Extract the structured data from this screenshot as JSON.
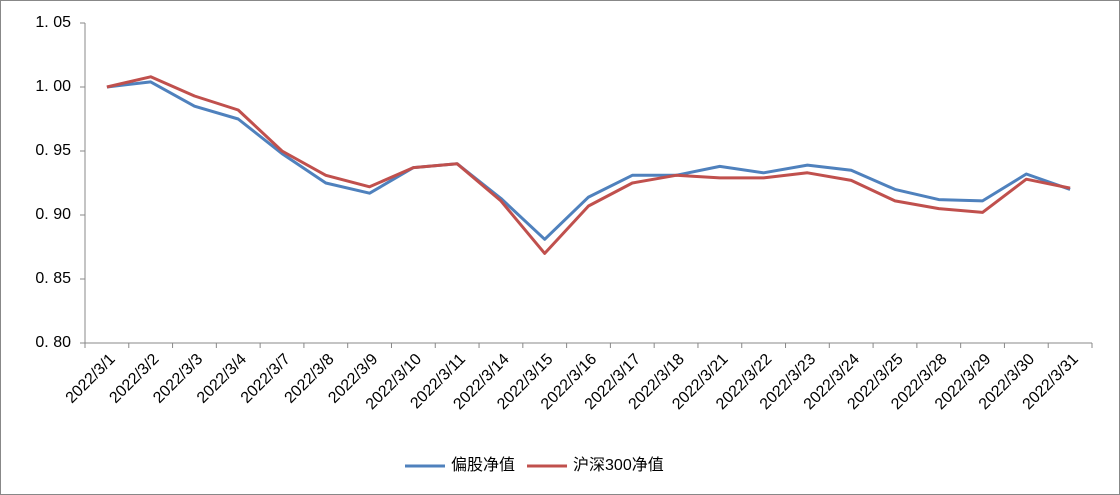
{
  "chart_data": {
    "type": "line",
    "categories": [
      "2022/3/1",
      "2022/3/2",
      "2022/3/3",
      "2022/3/4",
      "2022/3/7",
      "2022/3/8",
      "2022/3/9",
      "2022/3/10",
      "2022/3/11",
      "2022/3/14",
      "2022/3/15",
      "2022/3/16",
      "2022/3/17",
      "2022/3/18",
      "2022/3/21",
      "2022/3/22",
      "2022/3/23",
      "2022/3/24",
      "2022/3/25",
      "2022/3/28",
      "2022/3/29",
      "2022/3/30",
      "2022/3/31"
    ],
    "series": [
      {
        "name": "偏股净值",
        "color": "#4f81bd",
        "values": [
          1.0,
          1.004,
          0.985,
          0.975,
          0.948,
          0.925,
          0.917,
          0.937,
          0.94,
          0.913,
          0.881,
          0.914,
          0.931,
          0.931,
          0.938,
          0.933,
          0.939,
          0.935,
          0.92,
          0.912,
          0.911,
          0.932,
          0.92
        ]
      },
      {
        "name": "沪深300净值",
        "color": "#c0504d",
        "values": [
          1.0,
          1.008,
          0.993,
          0.982,
          0.95,
          0.931,
          0.922,
          0.937,
          0.94,
          0.911,
          0.87,
          0.907,
          0.925,
          0.931,
          0.929,
          0.929,
          0.933,
          0.927,
          0.911,
          0.905,
          0.902,
          0.928,
          0.921
        ]
      }
    ],
    "ylim": [
      0.8,
      1.05
    ],
    "yticks": [
      {
        "value": 0.8,
        "label": "0. 80"
      },
      {
        "value": 0.85,
        "label": "0. 85"
      },
      {
        "value": 0.9,
        "label": "0. 90"
      },
      {
        "value": 0.95,
        "label": "0. 95"
      },
      {
        "value": 1.0,
        "label": "1. 00"
      },
      {
        "value": 1.05,
        "label": "1. 05"
      }
    ],
    "legend": "bottom"
  }
}
